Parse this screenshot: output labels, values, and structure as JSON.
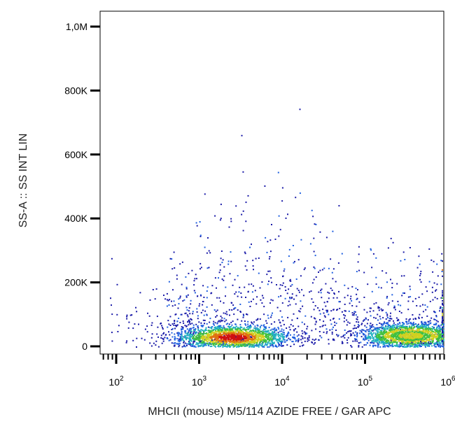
{
  "chart_data": {
    "type": "scatter",
    "style": "flow-cytometry density dot plot",
    "title": "",
    "xlabel": "MHCII (mouse) M5/114 AZIDE FREE / GAR APC",
    "ylabel": "SS-A :: SS INT LIN",
    "x_scale": "log",
    "xlim": [
      50,
      1000000
    ],
    "x_ticks": [
      {
        "value": 100,
        "base": "10",
        "exp": "2"
      },
      {
        "value": 1000,
        "base": "10",
        "exp": "3"
      },
      {
        "value": 10000,
        "base": "10",
        "exp": "4"
      },
      {
        "value": 100000,
        "base": "10",
        "exp": "5"
      },
      {
        "value": 1000000,
        "base": "10",
        "exp": "6"
      }
    ],
    "y_scale": "linear",
    "ylim": [
      0,
      1000000
    ],
    "y_ticks": [
      {
        "value": 0,
        "label": "0"
      },
      {
        "value": 200000,
        "label": "200K"
      },
      {
        "value": 400000,
        "label": "400K"
      },
      {
        "value": 600000,
        "label": "600K"
      },
      {
        "value": 800000,
        "label": "800K"
      },
      {
        "value": 1000000,
        "label": "1,0M"
      }
    ],
    "populations": [
      {
        "x_center": 2500,
        "y_center": 30000,
        "log_x_spread": 0.35,
        "y_spread": 20000
      },
      {
        "x_center": 350000,
        "y_center": 35000,
        "log_x_spread": 0.3,
        "y_spread": 20000
      }
    ],
    "density_colors": [
      "#1a1aa8",
      "#2060e0",
      "#20b0c0",
      "#40c040",
      "#d0d020",
      "#e07010",
      "#d01010"
    ],
    "grid": false,
    "legend": "none"
  }
}
